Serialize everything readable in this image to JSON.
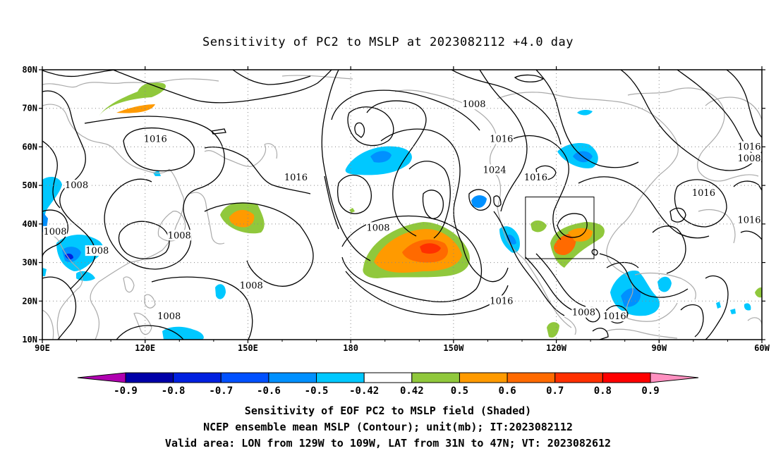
{
  "title": "Sensitivity of PC2 to MSLP at 2023082112 +4.0 day",
  "map": {
    "lon_range": [
      90,
      300
    ],
    "lat_range": [
      10,
      80
    ],
    "lat_ticks": [
      {
        "lat": 80,
        "label": "80N"
      },
      {
        "lat": 70,
        "label": "70N"
      },
      {
        "lat": 60,
        "label": "60N"
      },
      {
        "lat": 50,
        "label": "50N"
      },
      {
        "lat": 40,
        "label": "40N"
      },
      {
        "lat": 30,
        "label": "30N"
      },
      {
        "lat": 20,
        "label": "20N"
      },
      {
        "lat": 10,
        "label": "10N"
      }
    ],
    "lon_ticks": [
      {
        "lon": 90,
        "label": "90E"
      },
      {
        "lon": 120,
        "label": "120E"
      },
      {
        "lon": 150,
        "label": "150E"
      },
      {
        "lon": 180,
        "label": "180"
      },
      {
        "lon": 210,
        "label": "150W"
      },
      {
        "lon": 240,
        "label": "120W"
      },
      {
        "lon": 270,
        "label": "90W"
      },
      {
        "lon": 300,
        "label": "60W"
      }
    ],
    "valid_box": {
      "lon": [
        231,
        251
      ],
      "lat": [
        31,
        47
      ]
    },
    "contour_labels": [
      {
        "lon": 216,
        "lat": 71,
        "text": "1008"
      },
      {
        "lon": 123,
        "lat": 62,
        "text": "1016"
      },
      {
        "lon": 224,
        "lat": 62,
        "text": "1016"
      },
      {
        "lon": 100,
        "lat": 50,
        "text": "1008"
      },
      {
        "lon": 164,
        "lat": 52,
        "text": "1016"
      },
      {
        "lon": 222,
        "lat": 54,
        "text": "1024"
      },
      {
        "lon": 234,
        "lat": 52,
        "text": "1016"
      },
      {
        "lon": 283,
        "lat": 48,
        "text": "1016"
      },
      {
        "lon": 302,
        "lat": 57,
        "text": "1008"
      },
      {
        "lon": 320,
        "lat": 60,
        "text": "1016"
      },
      {
        "lon": 92,
        "lat": 38,
        "text": "1008"
      },
      {
        "lon": 130,
        "lat": 37,
        "text": "1008"
      },
      {
        "lon": 188,
        "lat": 39,
        "text": "1008"
      },
      {
        "lon": 106,
        "lat": 33,
        "text": "1008"
      },
      {
        "lon": 319,
        "lat": 41,
        "text": "1016"
      },
      {
        "lon": 151,
        "lat": 24,
        "text": "1008"
      },
      {
        "lon": 224,
        "lat": 20,
        "text": "1016"
      },
      {
        "lon": 127,
        "lat": 16,
        "text": "1008"
      },
      {
        "lon": 248,
        "lat": 17,
        "text": "1008"
      },
      {
        "lon": 257,
        "lat": 16,
        "text": "1016"
      }
    ]
  },
  "colorbar": {
    "boundaries": [
      "-0.9",
      "-0.8",
      "-0.7",
      "-0.6",
      "-0.5",
      "-0.42",
      "0.42",
      "0.5",
      "0.6",
      "0.7",
      "0.8",
      "0.9"
    ],
    "colors": [
      "#b000b0",
      "#0000a8",
      "#0020e0",
      "#0050ff",
      "#0090ff",
      "#00c8ff",
      "#ffffff",
      "#90c83c",
      "#ff9a00",
      "#ff6a00",
      "#ff3000",
      "#ff0000",
      "#ff90c0"
    ]
  },
  "captions": {
    "line1": "Sensitivity of EOF PC2 to MSLP field (Shaded)",
    "line2": "NCEP ensemble mean MSLP (Contour); unit(mb); IT:2023082112",
    "line3": "Valid area: LON from 129W to 109W, LAT from 31N to 47N; VT: 2023082612"
  },
  "colors": {
    "coast": "#aaaaaa",
    "contour": "#000000",
    "grid": "#888888"
  }
}
